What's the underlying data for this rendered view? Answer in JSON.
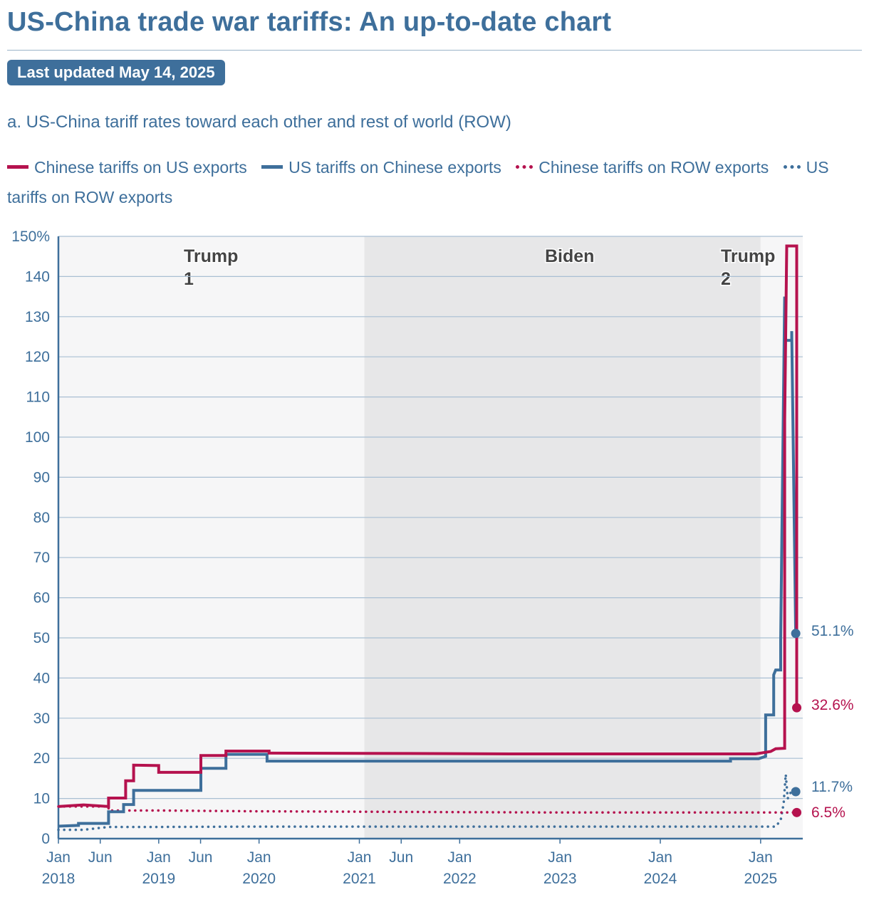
{
  "header": {
    "title": "US-China trade war tariffs: An up-to-date chart",
    "updated": "Last updated May 14, 2025",
    "panel_title": "a. US-China tariff rates toward each other and rest of world (ROW)"
  },
  "colors": {
    "red": "#b5124e",
    "blue": "#3e6f9b",
    "grid": "#a9bfd3"
  },
  "chart_data": {
    "type": "line",
    "title": "a. US-China tariff rates toward each other and rest of world (ROW)",
    "ylabel": "",
    "ylim": [
      0,
      150
    ],
    "xlim": [
      2018.0,
      2025.42
    ],
    "y_ticks": [
      {
        "value": 0,
        "label": "0"
      },
      {
        "value": 10,
        "label": "10"
      },
      {
        "value": 20,
        "label": "20"
      },
      {
        "value": 30,
        "label": "30"
      },
      {
        "value": 40,
        "label": "40"
      },
      {
        "value": 50,
        "label": "50"
      },
      {
        "value": 60,
        "label": "60"
      },
      {
        "value": 70,
        "label": "70"
      },
      {
        "value": 80,
        "label": "80"
      },
      {
        "value": 90,
        "label": "90"
      },
      {
        "value": 100,
        "label": "100"
      },
      {
        "value": 110,
        "label": "110"
      },
      {
        "value": 120,
        "label": "120"
      },
      {
        "value": 130,
        "label": "130"
      },
      {
        "value": 140,
        "label": "140"
      },
      {
        "value": 150,
        "label": "150%"
      }
    ],
    "x_ticks": [
      {
        "value": 2018.0,
        "label": "Jan",
        "year": "2018"
      },
      {
        "value": 2018.417,
        "label": "Jun",
        "year": ""
      },
      {
        "value": 2019.0,
        "label": "Jan",
        "year": "2019"
      },
      {
        "value": 2019.417,
        "label": "Jun",
        "year": ""
      },
      {
        "value": 2020.0,
        "label": "Jan",
        "year": "2020"
      },
      {
        "value": 2021.0,
        "label": "Jan",
        "year": "2021"
      },
      {
        "value": 2021.417,
        "label": "Jun",
        "year": ""
      },
      {
        "value": 2022.0,
        "label": "Jan",
        "year": "2022"
      },
      {
        "value": 2023.0,
        "label": "Jan",
        "year": "2023"
      },
      {
        "value": 2024.0,
        "label": "Jan",
        "year": "2024"
      },
      {
        "value": 2025.0,
        "label": "Jan",
        "year": "2025"
      }
    ],
    "periods": [
      {
        "label": "Trump",
        "label2": "1",
        "start": 2018.0,
        "end": 2021.05
      },
      {
        "label": "Biden",
        "label2": "",
        "start": 2021.05,
        "end": 2025.0
      },
      {
        "label": "Trump",
        "label2": "2",
        "start": 2025.0,
        "end": 2025.42
      }
    ],
    "legend": [
      {
        "name": "Chinese tariffs on US exports",
        "style": "solid-red"
      },
      {
        "name": "US tariffs on Chinese exports",
        "style": "solid-blue"
      },
      {
        "name": "Chinese tariffs on ROW exports",
        "style": "dot-red"
      },
      {
        "name": "US tariffs on ROW exports",
        "style": "dot-blue"
      }
    ],
    "series": [
      {
        "name": "Chinese tariffs on US exports",
        "color": "#b5124e",
        "dashed": false,
        "end_label": "32.6%",
        "points": [
          [
            2018.0,
            8.0
          ],
          [
            2018.25,
            8.4
          ],
          [
            2018.5,
            8.0
          ],
          [
            2018.5,
            10.1
          ],
          [
            2018.67,
            10.1
          ],
          [
            2018.67,
            14.4
          ],
          [
            2018.75,
            14.4
          ],
          [
            2018.75,
            18.3
          ],
          [
            2019.0,
            18.2
          ],
          [
            2019.0,
            16.5
          ],
          [
            2019.42,
            16.5
          ],
          [
            2019.42,
            20.7
          ],
          [
            2019.67,
            20.7
          ],
          [
            2019.67,
            21.8
          ],
          [
            2020.1,
            21.8
          ],
          [
            2020.1,
            21.3
          ],
          [
            2021.5,
            21.2
          ],
          [
            2022.5,
            21.1
          ],
          [
            2023.5,
            21.1
          ],
          [
            2024.95,
            21.1
          ],
          [
            2025.1,
            21.7
          ],
          [
            2025.15,
            22.4
          ],
          [
            2025.24,
            22.5
          ],
          [
            2025.24,
            104.0
          ],
          [
            2025.26,
            147.6
          ],
          [
            2025.36,
            147.6
          ],
          [
            2025.36,
            32.6
          ]
        ]
      },
      {
        "name": "US tariffs on Chinese exports",
        "color": "#3e6f9b",
        "dashed": false,
        "end_label": "51.1%",
        "points": [
          [
            2018.0,
            3.1
          ],
          [
            2018.2,
            3.3
          ],
          [
            2018.2,
            3.8
          ],
          [
            2018.5,
            3.8
          ],
          [
            2018.5,
            6.7
          ],
          [
            2018.65,
            6.7
          ],
          [
            2018.65,
            8.5
          ],
          [
            2018.75,
            8.5
          ],
          [
            2018.75,
            12.0
          ],
          [
            2019.42,
            12.0
          ],
          [
            2019.42,
            17.5
          ],
          [
            2019.67,
            17.5
          ],
          [
            2019.67,
            21.0
          ],
          [
            2020.08,
            21.0
          ],
          [
            2020.08,
            19.3
          ],
          [
            2021.0,
            19.3
          ],
          [
            2022.0,
            19.3
          ],
          [
            2023.0,
            19.3
          ],
          [
            2024.7,
            19.3
          ],
          [
            2024.7,
            19.9
          ],
          [
            2024.98,
            19.9
          ],
          [
            2025.05,
            20.5
          ],
          [
            2025.05,
            30.8
          ],
          [
            2025.13,
            30.8
          ],
          [
            2025.13,
            40.8
          ],
          [
            2025.15,
            42.0
          ],
          [
            2025.2,
            42.0
          ],
          [
            2025.2,
            49.5
          ],
          [
            2025.24,
            135.0
          ],
          [
            2025.25,
            124.1
          ],
          [
            2025.31,
            124.1
          ],
          [
            2025.31,
            126.4
          ],
          [
            2025.35,
            51.1
          ]
        ]
      },
      {
        "name": "Chinese tariffs on ROW exports",
        "color": "#b5124e",
        "dashed": true,
        "end_label": "6.5%",
        "points": [
          [
            2018.0,
            8.0
          ],
          [
            2018.5,
            8.0
          ],
          [
            2018.5,
            7.0
          ],
          [
            2019.0,
            7.0
          ],
          [
            2020.0,
            6.8
          ],
          [
            2021.0,
            6.7
          ],
          [
            2022.0,
            6.6
          ],
          [
            2023.0,
            6.5
          ],
          [
            2024.0,
            6.5
          ],
          [
            2025.0,
            6.5
          ],
          [
            2025.36,
            6.5
          ]
        ]
      },
      {
        "name": "US tariffs on ROW exports",
        "color": "#3e6f9b",
        "dashed": true,
        "end_label": "11.7%",
        "points": [
          [
            2018.0,
            2.2
          ],
          [
            2018.25,
            2.2
          ],
          [
            2018.5,
            2.9
          ],
          [
            2019.0,
            2.9
          ],
          [
            2020.0,
            3.0
          ],
          [
            2022.0,
            3.0
          ],
          [
            2024.0,
            3.0
          ],
          [
            2025.15,
            3.0
          ],
          [
            2025.2,
            4.6
          ],
          [
            2025.23,
            8.8
          ],
          [
            2025.25,
            16.0
          ],
          [
            2025.27,
            10.0
          ],
          [
            2025.31,
            12.0
          ],
          [
            2025.35,
            11.7
          ]
        ]
      }
    ]
  }
}
